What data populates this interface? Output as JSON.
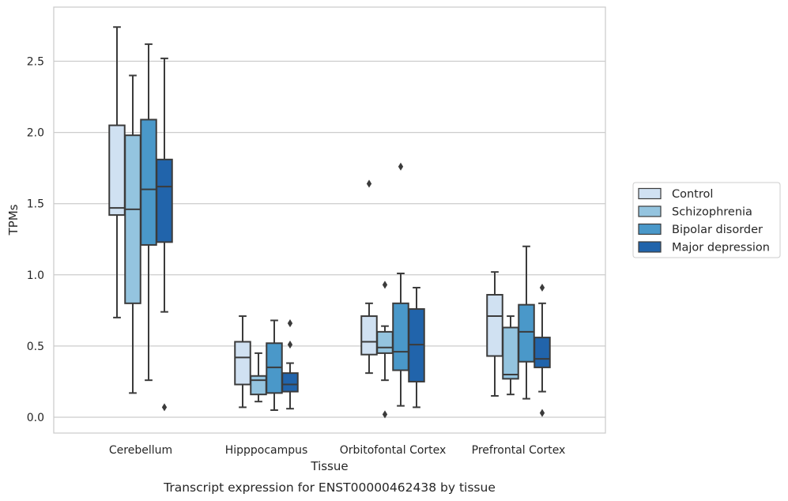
{
  "caption": "Transcript expression for ENST00000462438 by tissue",
  "chart_data": {
    "type": "box",
    "xlabel": "Tissue",
    "ylabel": "TPMs",
    "ylim": [
      -0.11,
      2.88
    ],
    "yticks": [
      0.0,
      0.5,
      1.0,
      1.5,
      2.0,
      2.5
    ],
    "ytick_labels": [
      "0.0",
      "0.5",
      "1.0",
      "1.5",
      "2.0",
      "2.5"
    ],
    "grid": "horizontal",
    "legend_position": "right",
    "categories": [
      "Cerebellum",
      "Hipppocampus",
      "Orbitofontal Cortex",
      "Prefrontal Cortex"
    ],
    "series": [
      {
        "name": "Control",
        "color": "#d0e1f2",
        "boxes": [
          {
            "whislo": 0.7,
            "q1": 1.42,
            "med": 1.47,
            "q3": 2.05,
            "whishi": 2.74,
            "fliers": []
          },
          {
            "whislo": 0.07,
            "q1": 0.23,
            "med": 0.42,
            "q3": 0.53,
            "whishi": 0.71,
            "fliers": []
          },
          {
            "whislo": 0.31,
            "q1": 0.44,
            "med": 0.53,
            "q3": 0.71,
            "whishi": 0.8,
            "fliers": [
              1.64
            ]
          },
          {
            "whislo": 0.15,
            "q1": 0.43,
            "med": 0.71,
            "q3": 0.86,
            "whishi": 1.02,
            "fliers": []
          }
        ]
      },
      {
        "name": "Schizophrenia",
        "color": "#94c4df",
        "boxes": [
          {
            "whislo": 0.17,
            "q1": 0.8,
            "med": 1.46,
            "q3": 1.98,
            "whishi": 2.4,
            "fliers": []
          },
          {
            "whislo": 0.11,
            "q1": 0.16,
            "med": 0.26,
            "q3": 0.29,
            "whishi": 0.45,
            "fliers": []
          },
          {
            "whislo": 0.26,
            "q1": 0.45,
            "med": 0.49,
            "q3": 0.6,
            "whishi": 0.64,
            "fliers": [
              0.93,
              0.02
            ]
          },
          {
            "whislo": 0.16,
            "q1": 0.27,
            "med": 0.3,
            "q3": 0.63,
            "whishi": 0.71,
            "fliers": []
          }
        ]
      },
      {
        "name": "Bipolar disorder",
        "color": "#4a98c9",
        "boxes": [
          {
            "whislo": 0.26,
            "q1": 1.21,
            "med": 1.6,
            "q3": 2.09,
            "whishi": 2.62,
            "fliers": []
          },
          {
            "whislo": 0.05,
            "q1": 0.17,
            "med": 0.35,
            "q3": 0.52,
            "whishi": 0.68,
            "fliers": []
          },
          {
            "whislo": 0.08,
            "q1": 0.33,
            "med": 0.46,
            "q3": 0.8,
            "whishi": 1.01,
            "fliers": [
              1.76
            ]
          },
          {
            "whislo": 0.13,
            "q1": 0.39,
            "med": 0.6,
            "q3": 0.79,
            "whishi": 1.2,
            "fliers": []
          }
        ]
      },
      {
        "name": "Major depression",
        "color": "#2164ab",
        "boxes": [
          {
            "whislo": 0.74,
            "q1": 1.23,
            "med": 1.62,
            "q3": 1.81,
            "whishi": 2.52,
            "fliers": [
              0.07
            ]
          },
          {
            "whislo": 0.06,
            "q1": 0.18,
            "med": 0.23,
            "q3": 0.31,
            "whishi": 0.38,
            "fliers": [
              0.66,
              0.51
            ]
          },
          {
            "whislo": 0.07,
            "q1": 0.25,
            "med": 0.51,
            "q3": 0.76,
            "whishi": 0.91,
            "fliers": []
          },
          {
            "whislo": 0.18,
            "q1": 0.35,
            "med": 0.41,
            "q3": 0.56,
            "whishi": 0.8,
            "fliers": [
              0.91,
              0.03
            ]
          }
        ]
      }
    ]
  }
}
